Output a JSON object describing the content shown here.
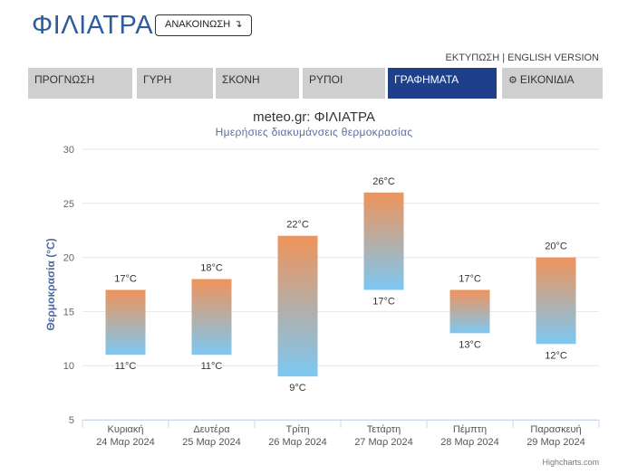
{
  "header": {
    "title": "ΦΙΛΙΑΤΡΑ",
    "announcements_label": "ΑΝΑΚΟΙΝΩΣΗ",
    "announcements_icon": "arrow-down-icon"
  },
  "toplinks": {
    "print_label": "ΕΚΤΥΠΩΣΗ",
    "separator": " | ",
    "english_label": "ENGLISH VERSION"
  },
  "tabs": [
    {
      "label": "ΠΡΟΓΝΩΣΗ",
      "active": false
    },
    {
      "label": "ΓΥΡΗ",
      "active": false
    },
    {
      "label": "ΣΚΟΝΗ",
      "active": false
    },
    {
      "label": "ΡΥΠΟΙ",
      "active": false
    },
    {
      "label": "ΓΡΑΦΗΜΑΤΑ",
      "active": true
    },
    {
      "label": "ΕΙΚΟΝΙΔΙΑ",
      "active": false,
      "icon": "gear-icon"
    }
  ],
  "colors": {
    "brand": "#2e5d9c",
    "tab_active": "#1f3f8a",
    "tab_inactive": "#cfcfcf",
    "bar_top": "#f0935a",
    "bar_bottom": "#7cc8f2"
  },
  "chart_data": {
    "type": "bar",
    "subtype": "columnrange",
    "title": "meteo.gr: ΦΙΛΙΑΤΡΑ",
    "subtitle": "Ημερήσιες διακυμάνσεις θερμοκρασίας",
    "ylabel": "Θερμοκρασία (°C)",
    "xlabel": "",
    "ylim": [
      5,
      30
    ],
    "yticks": [
      5,
      10,
      15,
      20,
      25,
      30
    ],
    "grid": true,
    "unit": "°C",
    "categories": [
      {
        "day": "Κυριακή",
        "date": "24 Μαρ 2024"
      },
      {
        "day": "Δευτέρα",
        "date": "25 Μαρ 2024"
      },
      {
        "day": "Τρίτη",
        "date": "26 Μαρ 2024"
      },
      {
        "day": "Τετάρτη",
        "date": "27 Μαρ 2024"
      },
      {
        "day": "Πέμπτη",
        "date": "28 Μαρ 2024"
      },
      {
        "day": "Παρασκευή",
        "date": "29 Μαρ 2024"
      }
    ],
    "low": [
      11,
      11,
      9,
      17,
      13,
      12
    ],
    "high": [
      17,
      18,
      22,
      26,
      17,
      20
    ],
    "credits": "Highcharts.com"
  }
}
